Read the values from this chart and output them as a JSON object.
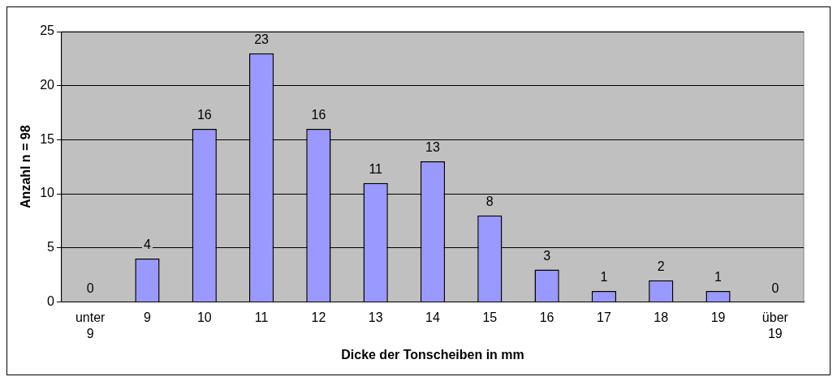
{
  "chart_data": {
    "type": "bar",
    "xlabel": "Dicke der Tonscheiben in mm",
    "ylabel": "Anzahl n = 98",
    "categories": [
      "unter 9",
      "9",
      "10",
      "11",
      "12",
      "13",
      "14",
      "15",
      "16",
      "17",
      "18",
      "19",
      "über 19"
    ],
    "values": [
      0,
      4,
      16,
      23,
      16,
      11,
      13,
      8,
      3,
      1,
      2,
      1,
      0
    ],
    "color": "#9999ff",
    "ylim": [
      0,
      25
    ],
    "yticks": [
      0,
      5,
      10,
      15,
      20,
      25
    ],
    "grid": "y",
    "data_labels": true,
    "legend": false
  }
}
